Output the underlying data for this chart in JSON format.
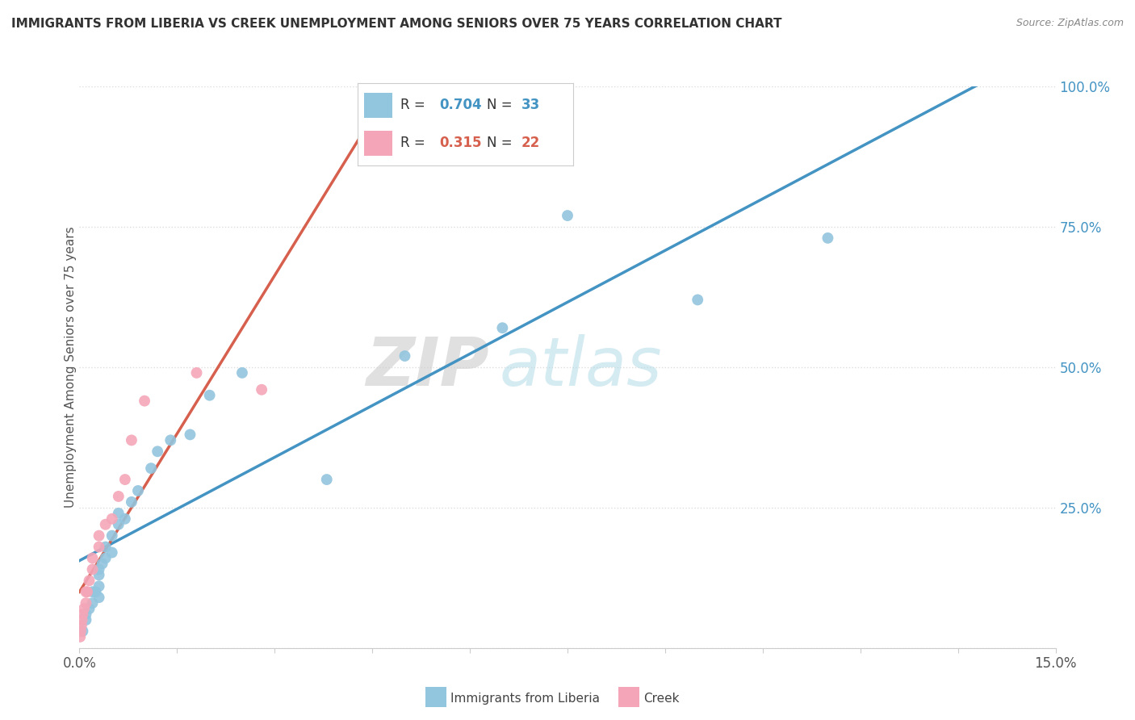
{
  "title": "IMMIGRANTS FROM LIBERIA VS CREEK UNEMPLOYMENT AMONG SENIORS OVER 75 YEARS CORRELATION CHART",
  "source": "Source: ZipAtlas.com",
  "ylabel": "Unemployment Among Seniors over 75 years",
  "xlim": [
    0.0,
    0.15
  ],
  "ylim": [
    0.0,
    1.0
  ],
  "liberia_R": "0.704",
  "liberia_N": "33",
  "creek_R": "0.315",
  "creek_N": "22",
  "liberia_color": "#92C5DE",
  "creek_color": "#F4A6B8",
  "liberia_line_color": "#4393C3",
  "creek_line_color": "#D6604D",
  "dashed_color": "#C0A0A0",
  "liberia_x": [
    0.0005,
    0.001,
    0.001,
    0.0015,
    0.002,
    0.002,
    0.0025,
    0.003,
    0.003,
    0.003,
    0.003,
    0.0035,
    0.004,
    0.004,
    0.005,
    0.005,
    0.006,
    0.006,
    0.007,
    0.008,
    0.009,
    0.011,
    0.012,
    0.014,
    0.017,
    0.02,
    0.025,
    0.038,
    0.05,
    0.065,
    0.075,
    0.095,
    0.115
  ],
  "liberia_y": [
    0.03,
    0.05,
    0.06,
    0.07,
    0.08,
    0.1,
    0.1,
    0.09,
    0.11,
    0.13,
    0.14,
    0.15,
    0.16,
    0.18,
    0.17,
    0.2,
    0.22,
    0.24,
    0.23,
    0.26,
    0.28,
    0.32,
    0.35,
    0.37,
    0.38,
    0.45,
    0.49,
    0.3,
    0.52,
    0.57,
    0.77,
    0.62,
    0.73
  ],
  "creek_x": [
    0.0001,
    0.0002,
    0.0003,
    0.0004,
    0.0005,
    0.0007,
    0.001,
    0.001,
    0.0012,
    0.0015,
    0.002,
    0.002,
    0.003,
    0.003,
    0.004,
    0.005,
    0.006,
    0.007,
    0.008,
    0.01,
    0.018,
    0.028
  ],
  "creek_y": [
    0.02,
    0.03,
    0.04,
    0.05,
    0.06,
    0.07,
    0.08,
    0.1,
    0.1,
    0.12,
    0.14,
    0.16,
    0.18,
    0.2,
    0.22,
    0.23,
    0.27,
    0.3,
    0.37,
    0.44,
    0.49,
    0.46
  ],
  "watermark_zip": "ZIP",
  "watermark_atlas": "atlas",
  "background_color": "#FFFFFF"
}
